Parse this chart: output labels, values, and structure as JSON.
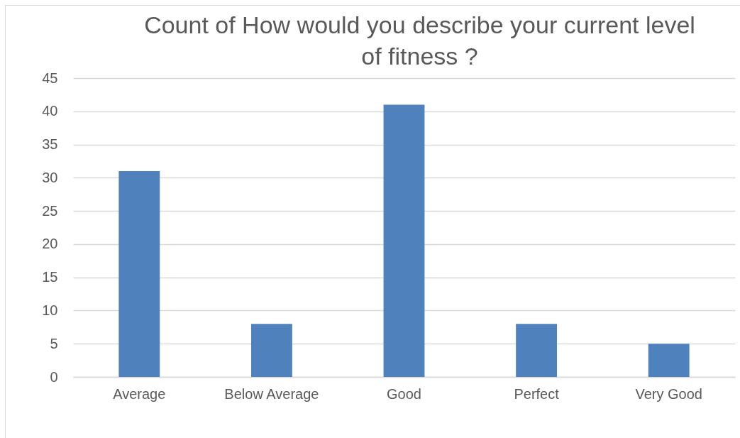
{
  "chart_data": {
    "type": "bar",
    "title": "Count of How would you describe your current level of fitness ?",
    "categories": [
      "Average",
      "Below Average",
      "Good",
      "Perfect",
      "Very Good"
    ],
    "values": [
      31,
      8,
      41,
      8,
      5
    ],
    "color": "#4f81bd",
    "ylim": [
      0,
      45
    ],
    "yticks": [
      0,
      5,
      10,
      15,
      20,
      25,
      30,
      35,
      40,
      45
    ],
    "grid": "y"
  }
}
